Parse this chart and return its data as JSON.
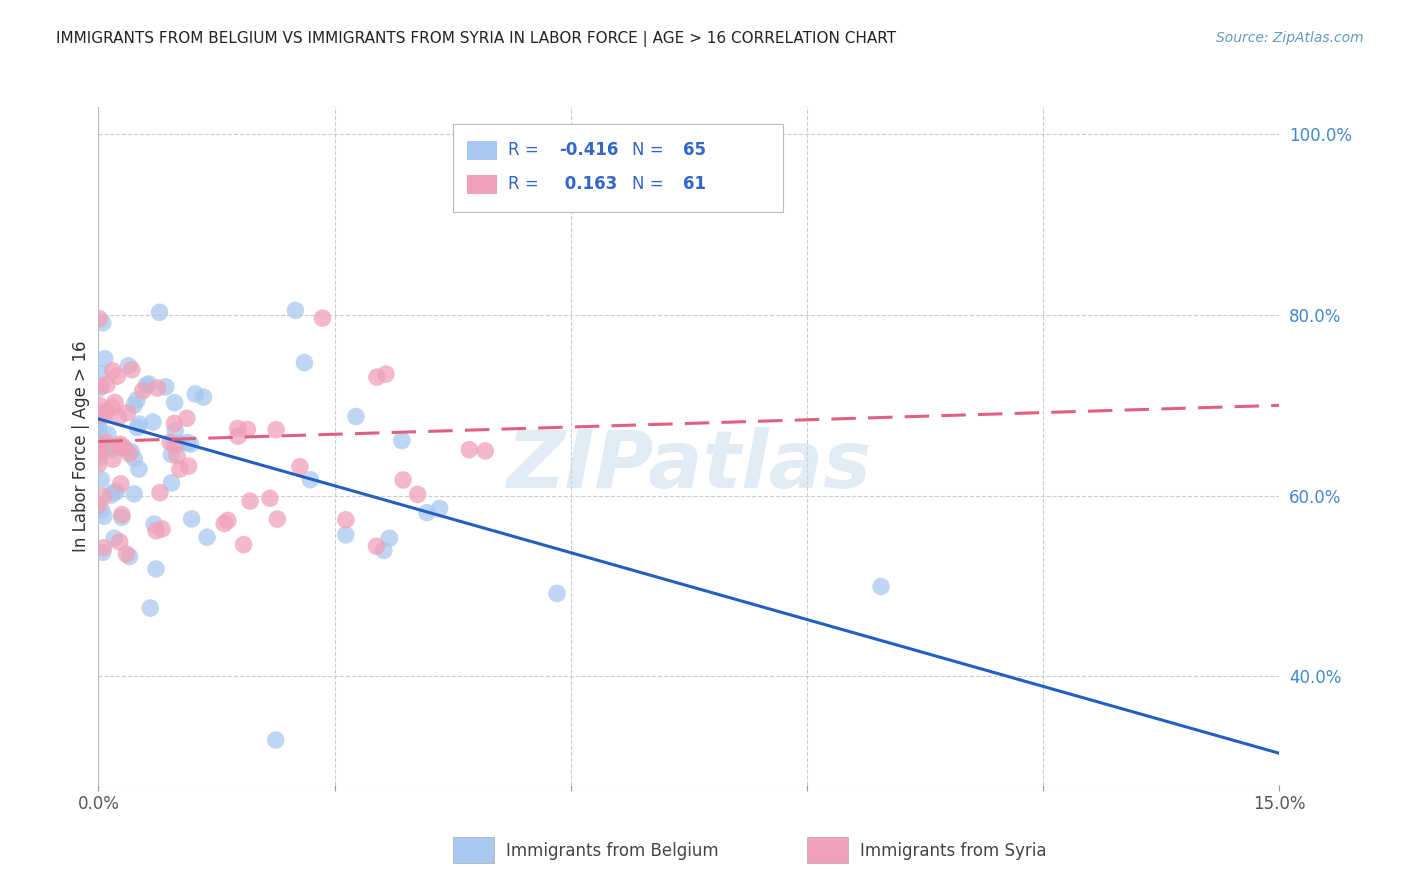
{
  "title": "IMMIGRANTS FROM BELGIUM VS IMMIGRANTS FROM SYRIA IN LABOR FORCE | AGE > 16 CORRELATION CHART",
  "source": "Source: ZipAtlas.com",
  "ylabel": "In Labor Force | Age > 16",
  "xlim": [
    0.0,
    0.15
  ],
  "ylim": [
    0.28,
    1.03
  ],
  "y_ticks_right": [
    1.0,
    0.8,
    0.6,
    0.4
  ],
  "y_tick_labels_right": [
    "100.0%",
    "80.0%",
    "60.0%",
    "40.0%"
  ],
  "R_belgium": -0.416,
  "N_belgium": 65,
  "R_syria": 0.163,
  "N_syria": 61,
  "color_belgium": "#A8C8F0",
  "color_syria": "#F0A0B8",
  "color_line_belgium": "#2060C0",
  "color_line_syria": "#E06080",
  "legend_label_belgium": "Immigrants from Belgium",
  "legend_label_syria": "Immigrants from Syria",
  "watermark": "ZIPatlas",
  "bel_line_y0": 0.685,
  "bel_line_y1": 0.315,
  "syr_line_y0": 0.66,
  "syr_line_y1": 0.7,
  "background_color": "#FFFFFF",
  "grid_color": "#CCCCCC",
  "tick_color": "#4488CC",
  "title_color": "#222222",
  "source_color": "#6699BB"
}
